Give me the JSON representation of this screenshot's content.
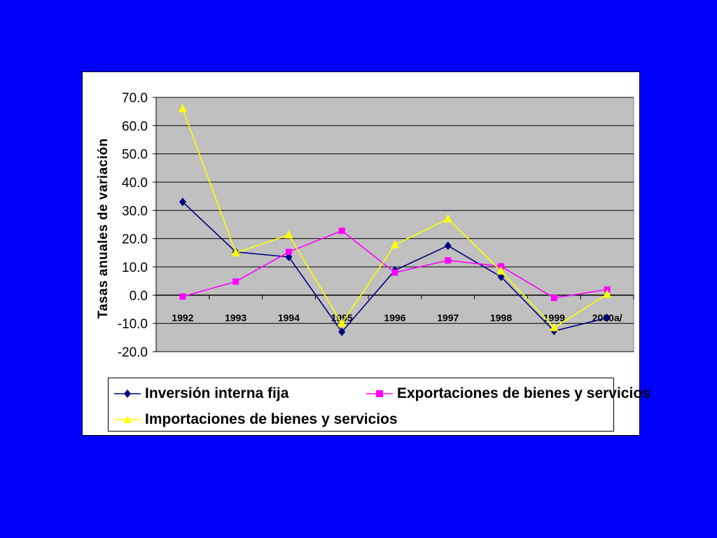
{
  "chart_data": {
    "type": "line",
    "categories": [
      "1992",
      "1993",
      "1994",
      "1995",
      "1996",
      "1997",
      "1998",
      "1999",
      "2000a/"
    ],
    "series": [
      {
        "name": "Inversión interna fija",
        "color": "#000080",
        "marker": "diamond",
        "values": [
          33.0,
          15.3,
          13.5,
          -13.0,
          8.8,
          17.5,
          6.5,
          -12.7,
          -8.0
        ]
      },
      {
        "name": "Exportaciones de bienes y servicios",
        "color": "#FF00FF",
        "marker": "square",
        "values": [
          -0.5,
          4.8,
          15.3,
          22.8,
          8.0,
          12.3,
          10.2,
          -1.0,
          2.0
        ]
      },
      {
        "name": "Importaciones de bienes y servicios",
        "color": "#FFFF00",
        "marker": "triangle",
        "values": [
          66.0,
          15.0,
          21.3,
          -10.0,
          17.8,
          27.0,
          8.5,
          -11.5,
          0.3
        ]
      }
    ],
    "ylabel": "Tasas anuales de variación",
    "xlabel": "",
    "ylim": [
      -20.0,
      70.0
    ],
    "yticks": [
      "-20.0",
      "-10.0",
      "0.0",
      "10.0",
      "20.0",
      "30.0",
      "40.0",
      "50.0",
      "60.0",
      "70.0"
    ],
    "grid": true,
    "plot_background": "#C0C0C0",
    "page_background": "#0000FF",
    "legend_position": "bottom"
  }
}
